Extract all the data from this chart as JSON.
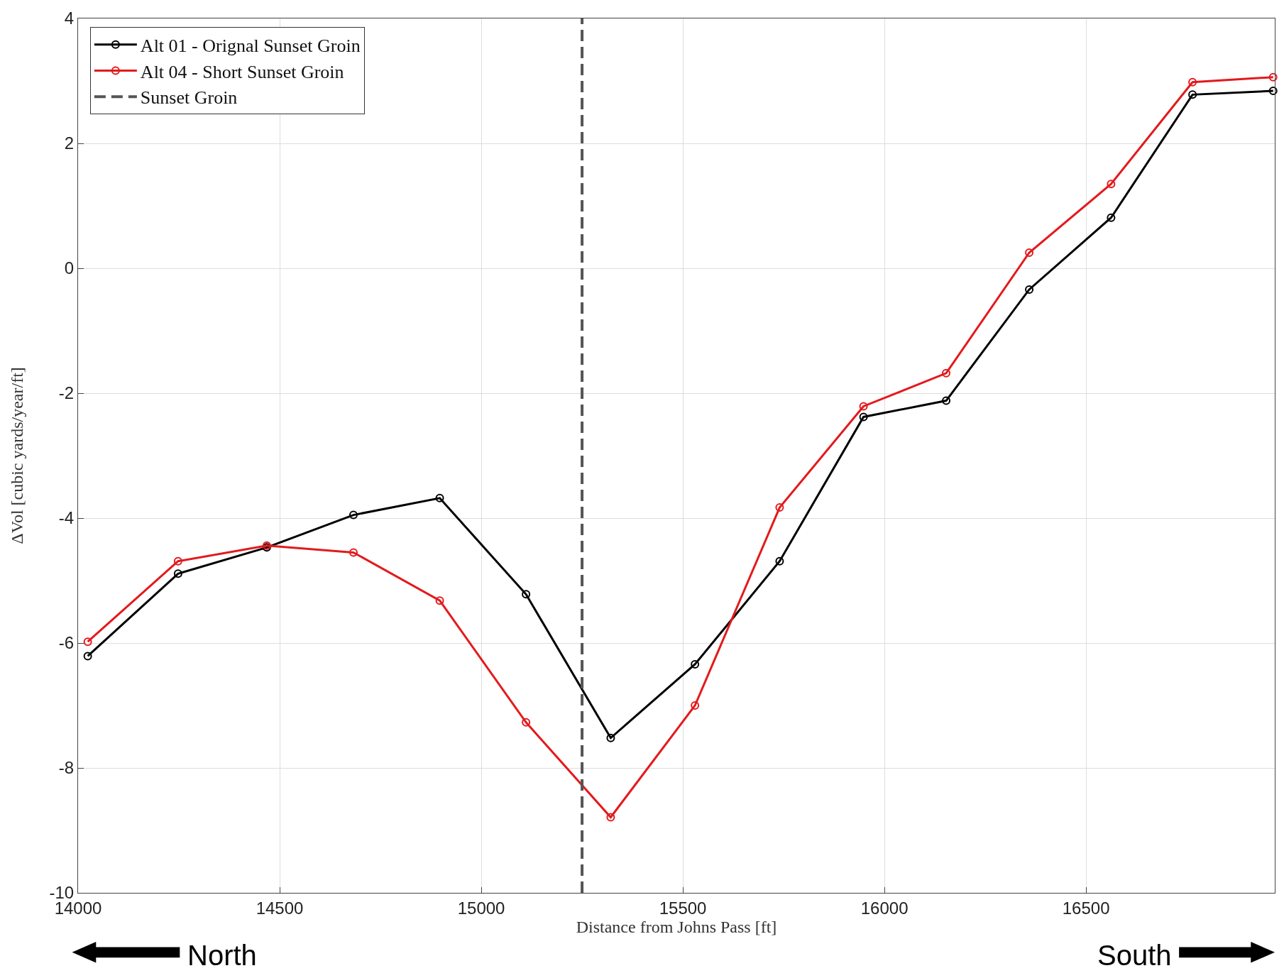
{
  "chart_data": {
    "type": "line",
    "xlabel": "Distance from Johns Pass [ft]",
    "ylabel": "ΔVol [cubic yards/year/ft]",
    "series": [
      {
        "name": "Alt 01 - Orignal Sunset Groin",
        "color": "#000000",
        "x": [
          14024,
          14248,
          14468,
          14683,
          14897,
          15111,
          15321,
          15530,
          15740,
          15948,
          16153,
          16359,
          16562,
          16764,
          16964
        ],
        "values": [
          -6.21,
          -4.89,
          -4.47,
          -3.95,
          -3.68,
          -5.22,
          -7.52,
          -6.34,
          -4.69,
          -2.38,
          -2.12,
          -0.34,
          0.81,
          2.78,
          2.84
        ]
      },
      {
        "name": "Alt 04 - Short Sunset Groin",
        "color": "#e31a1c",
        "x": [
          14024,
          14248,
          14468,
          14683,
          14897,
          15111,
          15321,
          15530,
          15740,
          15948,
          16153,
          16359,
          16562,
          16764,
          16964
        ],
        "values": [
          -5.98,
          -4.69,
          -4.44,
          -4.55,
          -5.32,
          -7.27,
          -8.79,
          -7.0,
          -3.83,
          -2.21,
          -1.68,
          0.25,
          1.35,
          2.98,
          3.06
        ]
      },
      {
        "name": "Sunset Groin",
        "color": "#555555",
        "x": [
          15250,
          15250
        ],
        "values": [
          -10,
          4
        ],
        "line_style": "dashed",
        "marker": "none"
      }
    ],
    "annotations": [
      "North",
      "South"
    ],
    "xlim": [
      14000,
      16968
    ],
    "xticks": [
      14000,
      14500,
      15000,
      15500,
      16000,
      16500
    ],
    "ylim": [
      -10,
      4
    ],
    "yticks": [
      -10,
      -8,
      -6,
      -4,
      -2,
      0,
      2,
      4
    ],
    "grid": true,
    "legend": "top left",
    "marker": "circle",
    "line_style": "solid"
  }
}
